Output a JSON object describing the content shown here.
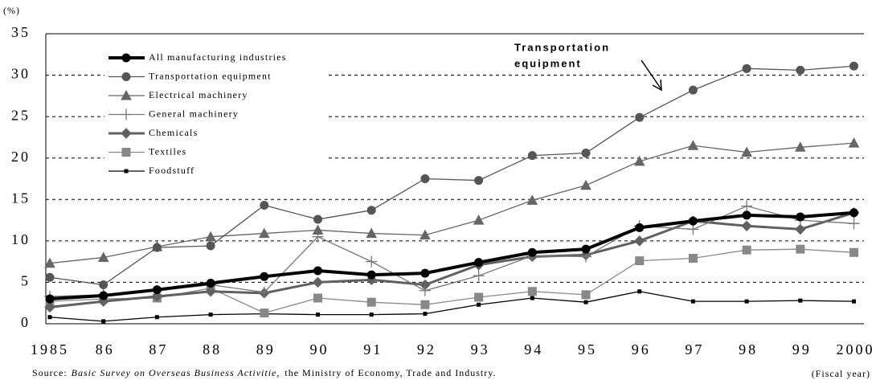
{
  "chart_data": {
    "type": "line",
    "y_label": "(%)",
    "x_label": "(Fiscal year)",
    "source": {
      "prefix": "Source:",
      "title": "Basic Survey on Overseas Business Activitie,",
      "suffix": "the Ministry of Economy, Trade and Industry."
    },
    "annotation": [
      "Transportation",
      "equipment"
    ],
    "categories": [
      "1985",
      "86",
      "87",
      "88",
      "89",
      "90",
      "91",
      "92",
      "93",
      "94",
      "95",
      "96",
      "97",
      "98",
      "99",
      "2000"
    ],
    "ylim": [
      0,
      35
    ],
    "yticks": [
      0,
      5,
      10,
      15,
      20,
      25,
      30,
      35
    ],
    "grid": true,
    "legend": "upper left",
    "series": [
      {
        "name": "All manufacturing industries",
        "color": "#000000",
        "marker": "circle",
        "values": [
          3.0,
          3.4,
          4.1,
          4.9,
          5.7,
          6.4,
          5.9,
          6.1,
          7.4,
          8.6,
          9.0,
          11.6,
          12.4,
          13.1,
          12.9,
          13.4
        ]
      },
      {
        "name": "Transportation equipment",
        "color": "#555555",
        "marker": "circle",
        "values": [
          5.6,
          4.7,
          9.2,
          9.4,
          14.3,
          12.6,
          13.7,
          17.5,
          17.3,
          20.3,
          20.6,
          24.9,
          28.2,
          30.8,
          30.6,
          31.1
        ]
      },
      {
        "name": "Electrical machinery",
        "color": "#666666",
        "marker": "triangle",
        "values": [
          7.3,
          8.0,
          9.3,
          10.5,
          10.9,
          11.3,
          10.9,
          10.7,
          12.5,
          14.9,
          16.7,
          19.6,
          21.5,
          20.7,
          21.3,
          21.8
        ]
      },
      {
        "name": "General machinery",
        "color": "#777777",
        "marker": "plus",
        "values": [
          3.3,
          3.5,
          4.0,
          4.7,
          3.8,
          10.5,
          7.5,
          4.0,
          5.8,
          8.2,
          8.1,
          11.8,
          11.4,
          14.2,
          12.5,
          12.1
        ]
      },
      {
        "name": "Chemicals",
        "color": "#606060",
        "marker": "diamond",
        "values": [
          2.0,
          2.7,
          3.3,
          3.9,
          3.7,
          5.0,
          5.3,
          4.7,
          7.1,
          8.1,
          8.3,
          10.0,
          12.4,
          11.8,
          11.4,
          13.4
        ]
      },
      {
        "name": "Textiles",
        "color": "#888888",
        "marker": "square",
        "values": [
          2.7,
          3.0,
          3.1,
          4.3,
          1.3,
          3.1,
          2.6,
          2.3,
          3.2,
          3.9,
          3.5,
          7.6,
          7.9,
          8.9,
          9.0,
          8.6
        ]
      },
      {
        "name": "Foodstuff",
        "color": "#000000",
        "marker": "smallsquare",
        "values": [
          0.8,
          0.3,
          0.8,
          1.1,
          1.2,
          1.1,
          1.1,
          1.2,
          2.3,
          3.1,
          2.6,
          3.9,
          2.7,
          2.7,
          2.8,
          2.7
        ]
      }
    ]
  }
}
